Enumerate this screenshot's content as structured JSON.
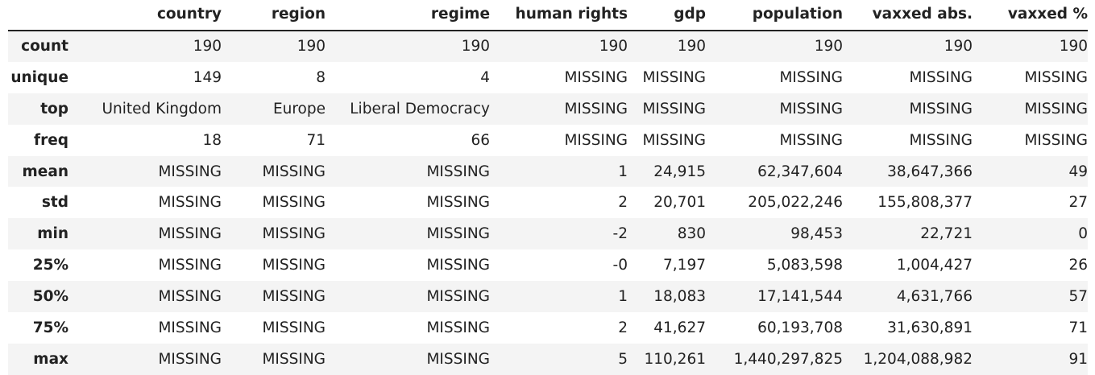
{
  "columns": [
    "",
    "country",
    "region",
    "regime",
    "human rights",
    "gdp",
    "population",
    "vaxxed abs.",
    "vaxxed %"
  ],
  "rows": [
    {
      "label": "count",
      "cells": [
        "190",
        "190",
        "190",
        "190",
        "190",
        "190",
        "190",
        "190"
      ]
    },
    {
      "label": "unique",
      "cells": [
        "149",
        "8",
        "4",
        "MISSING",
        "MISSING",
        "MISSING",
        "MISSING",
        "MISSING"
      ]
    },
    {
      "label": "top",
      "cells": [
        "United Kingdom",
        "Europe",
        "Liberal Democracy",
        "MISSING",
        "MISSING",
        "MISSING",
        "MISSING",
        "MISSING"
      ]
    },
    {
      "label": "freq",
      "cells": [
        "18",
        "71",
        "66",
        "MISSING",
        "MISSING",
        "MISSING",
        "MISSING",
        "MISSING"
      ]
    },
    {
      "label": "mean",
      "cells": [
        "MISSING",
        "MISSING",
        "MISSING",
        "1",
        "24,915",
        "62,347,604",
        "38,647,366",
        "49"
      ]
    },
    {
      "label": "std",
      "cells": [
        "MISSING",
        "MISSING",
        "MISSING",
        "2",
        "20,701",
        "205,022,246",
        "155,808,377",
        "27"
      ]
    },
    {
      "label": "min",
      "cells": [
        "MISSING",
        "MISSING",
        "MISSING",
        "-2",
        "830",
        "98,453",
        "22,721",
        "0"
      ]
    },
    {
      "label": "25%",
      "cells": [
        "MISSING",
        "MISSING",
        "MISSING",
        "-0",
        "7,197",
        "5,083,598",
        "1,004,427",
        "26"
      ]
    },
    {
      "label": "50%",
      "cells": [
        "MISSING",
        "MISSING",
        "MISSING",
        "1",
        "18,083",
        "17,141,544",
        "4,631,766",
        "57"
      ]
    },
    {
      "label": "75%",
      "cells": [
        "MISSING",
        "MISSING",
        "MISSING",
        "2",
        "41,627",
        "60,193,708",
        "31,630,891",
        "71"
      ]
    },
    {
      "label": "max",
      "cells": [
        "MISSING",
        "MISSING",
        "MISSING",
        "5",
        "110,261",
        "1,440,297,825",
        "1,204,088,982",
        "91"
      ]
    }
  ]
}
